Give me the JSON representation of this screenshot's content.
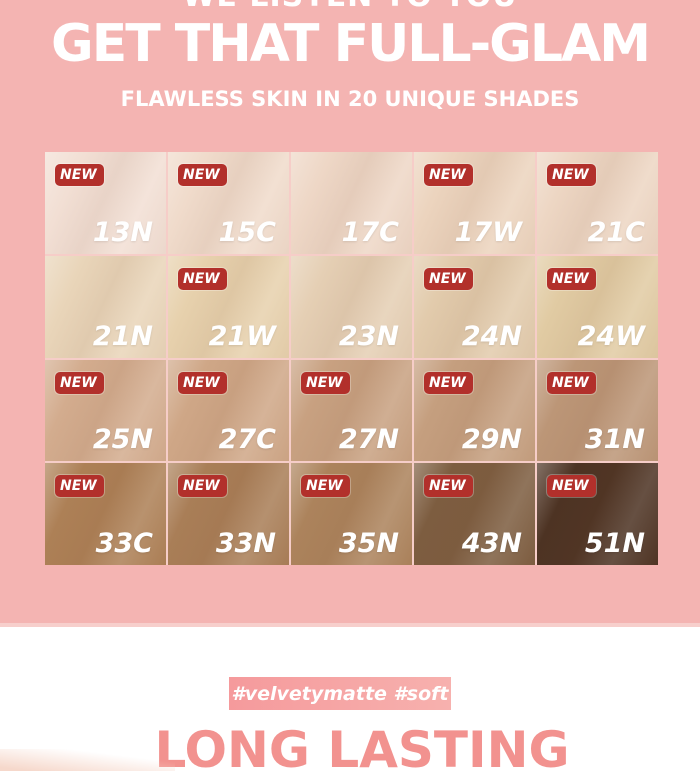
{
  "theme": {
    "background_pink": "#f4b4b2",
    "section_divider_pink": "#f7cfcc",
    "badge_red": "#b2302b",
    "banner_pink": "#f59a9c",
    "banner_pink_light": "#f7b1ae",
    "headline_salmon": "#f2928f",
    "text_white": "#ffffff"
  },
  "header": {
    "tagline": "WE LISTEN TO YOU",
    "title": "GET THAT FULL-GLAM",
    "subtitle": "FLAWLESS SKIN IN 20 UNIQUE SHADES"
  },
  "shade_grid": {
    "badge_label": "NEW",
    "shades": [
      {
        "code": "13N",
        "color": "#f2dfd4",
        "new": true
      },
      {
        "code": "15C",
        "color": "#f0dbcb",
        "new": true
      },
      {
        "code": "17C",
        "color": "#eed7c6",
        "new": false
      },
      {
        "code": "17W",
        "color": "#ecd4be",
        "new": true
      },
      {
        "code": "21C",
        "color": "#edd6c3",
        "new": true
      },
      {
        "code": "21N",
        "color": "#e9d5b9",
        "new": false
      },
      {
        "code": "21W",
        "color": "#e7d1ad",
        "new": true
      },
      {
        "code": "23N",
        "color": "#e5cfb4",
        "new": false
      },
      {
        "code": "24N",
        "color": "#e2cbac",
        "new": true
      },
      {
        "code": "24W",
        "color": "#e1cba3",
        "new": true
      },
      {
        "code": "25N",
        "color": "#d3ac8e",
        "new": true
      },
      {
        "code": "27C",
        "color": "#cfa787",
        "new": true
      },
      {
        "code": "27N",
        "color": "#c8a181",
        "new": true
      },
      {
        "code": "29N",
        "color": "#c59f7f",
        "new": true
      },
      {
        "code": "31N",
        "color": "#bc9677",
        "new": true
      },
      {
        "code": "33C",
        "color": "#ad8056",
        "new": true
      },
      {
        "code": "33N",
        "color": "#a97e57",
        "new": true
      },
      {
        "code": "35N",
        "color": "#ac835c",
        "new": true
      },
      {
        "code": "43N",
        "color": "#7d5d40",
        "new": true
      },
      {
        "code": "51N",
        "color": "#4d3323",
        "new": true
      }
    ]
  },
  "bottom": {
    "hashtag_banner": "#velvetymatte  #soft",
    "headline": "LONG LASTING"
  }
}
